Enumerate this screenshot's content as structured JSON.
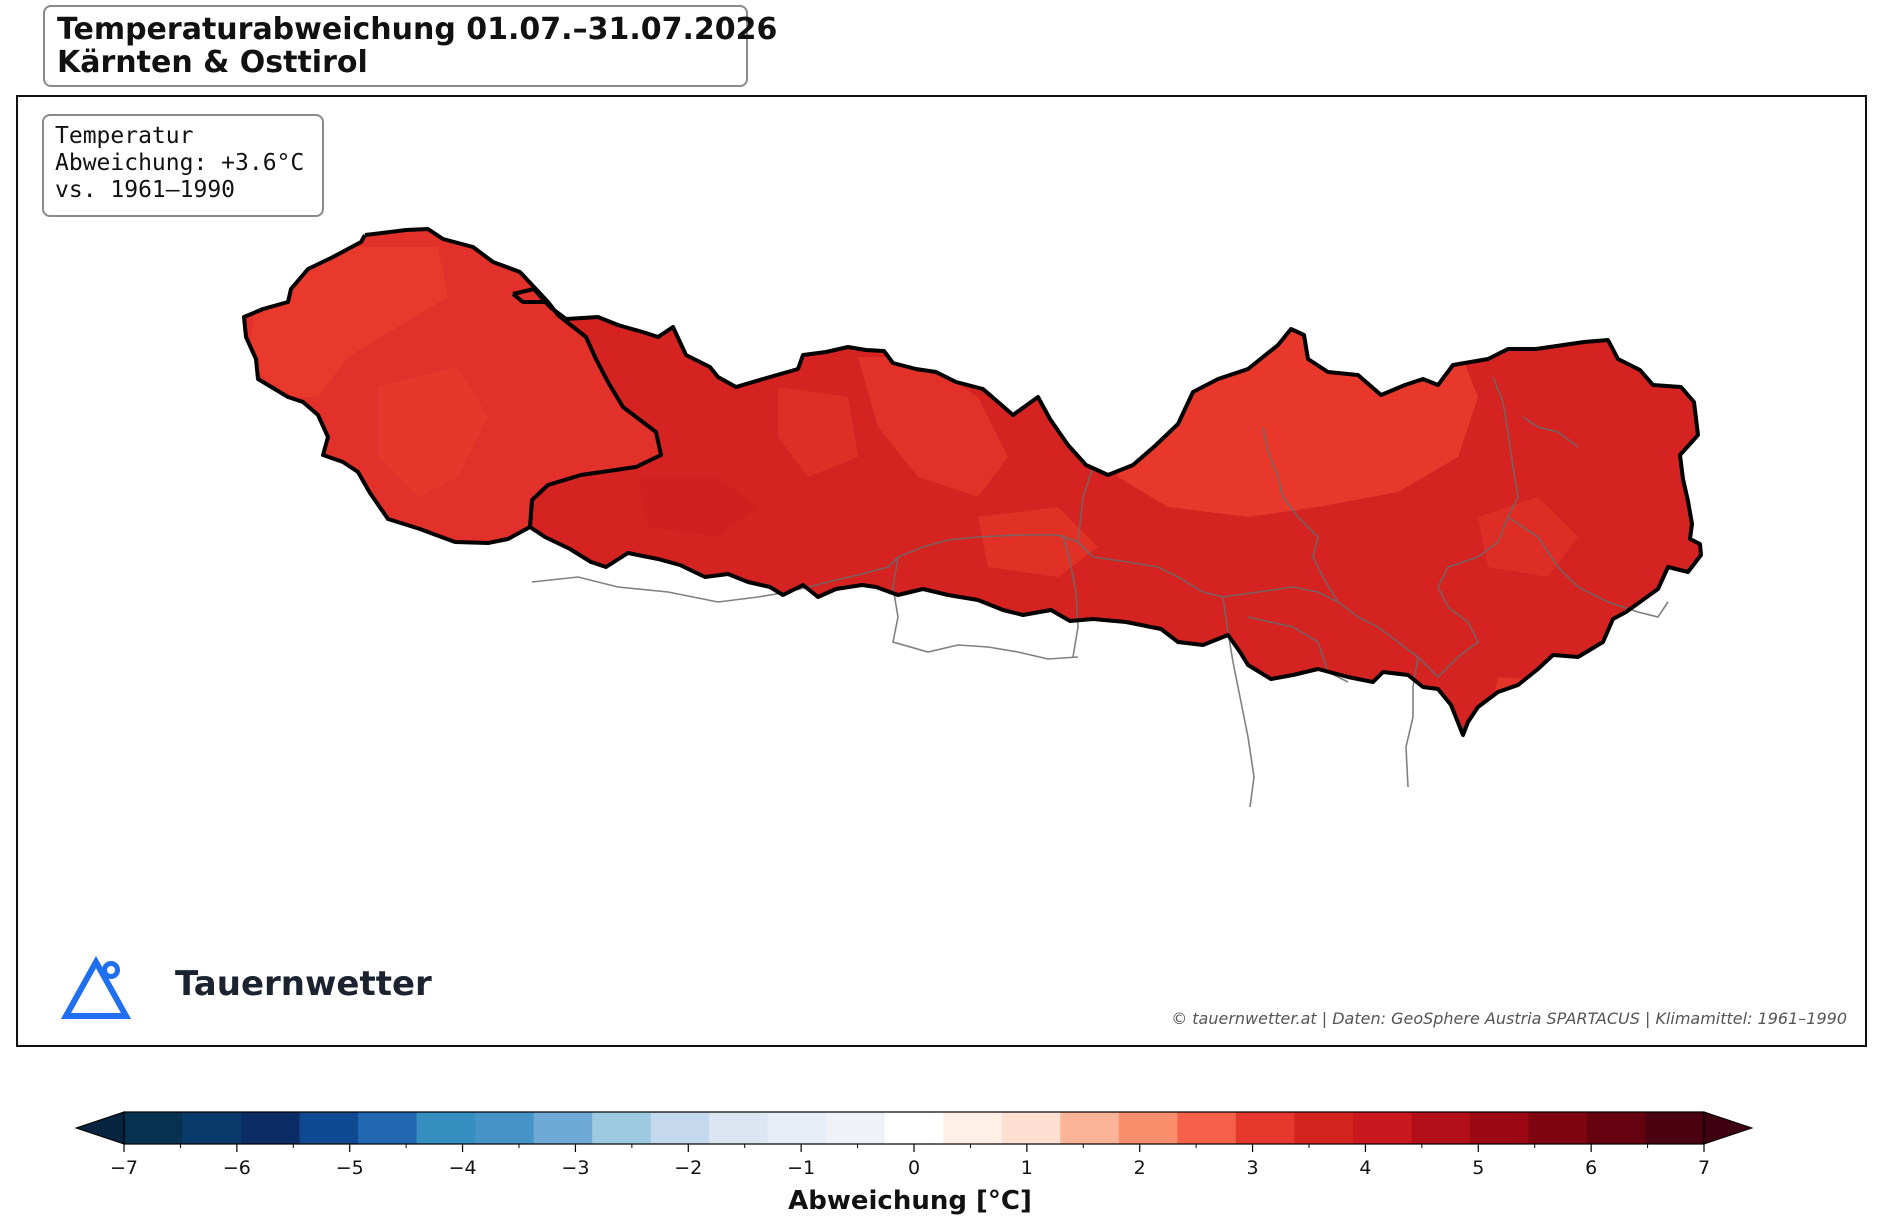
{
  "header": {
    "title_line1": "Temperaturabweichung 01.07.–31.07.2026",
    "title_line2": "Kärnten & Osttirol"
  },
  "info_box": {
    "line1": "Temperatur",
    "line2": "Abweichung: +3.6°C",
    "line3": "vs. 1961–1990"
  },
  "logo": {
    "text": "Tauernwetter",
    "icon": "mountain-triangle-icon",
    "color": "#1f6ff0"
  },
  "credit": "© tauernwetter.at | Daten: GeoSphere Austria SPARTACUS | Klimamittel: 1961–1990",
  "map": {
    "regions": [
      "Osttirol",
      "Kärnten"
    ],
    "mean_anomaly_c": 3.6,
    "fill_colors": {
      "main": "#d42320",
      "light": "#ea3b2d",
      "dark": "#cc1d1f"
    },
    "border_color": "#000000",
    "district_line_color": "#6a6a6a"
  },
  "colorbar": {
    "label": "Abweichung [°C]",
    "min": -7,
    "max": 7,
    "step": 0.5,
    "extend": "both",
    "tick_values": [
      -7,
      -6,
      -5,
      -4,
      -3,
      -2,
      -1,
      0,
      1,
      2,
      3,
      4,
      5,
      6,
      7
    ],
    "tick_labels": [
      "−7",
      "−6",
      "−5",
      "−4",
      "−3",
      "−2",
      "−1",
      "0",
      "1",
      "2",
      "3",
      "4",
      "5",
      "6",
      "7"
    ],
    "colors": [
      "#06324f",
      "#083a6a",
      "#0b2c64",
      "#0d4a92",
      "#2168b0",
      "#368dc0",
      "#4593c7",
      "#6ea9d5",
      "#9ecae1",
      "#c4d9ee",
      "#dce6f2",
      "#e8eef7",
      "#f1f1fa",
      "#ffffff",
      "#fff0e7",
      "#fddfd2",
      "#fbb497",
      "#fa8d6b",
      "#f5614a",
      "#e6382c",
      "#d3231f",
      "#c9191e",
      "#b20f18",
      "#9b0712",
      "#7f0510",
      "#640210",
      "#4b0210"
    ],
    "under_color": "#062340",
    "over_color": "#3f0012"
  }
}
